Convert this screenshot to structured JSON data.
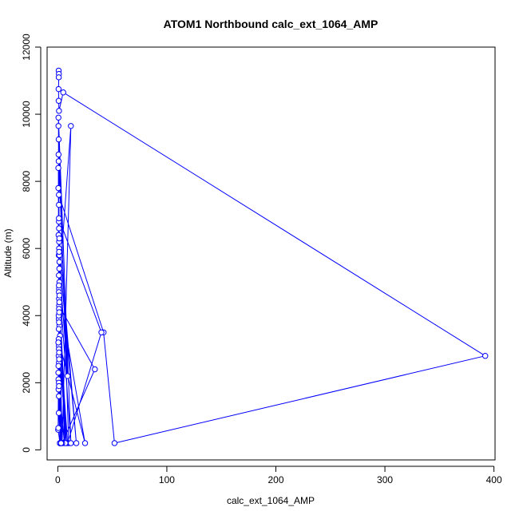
{
  "chart_data": {
    "type": "line",
    "title": "ATOM1 Northbound calc_ext_1064_AMP",
    "xlabel": "calc_ext_1064_AMP",
    "ylabel": "Altitude (m)",
    "xlim": [
      -9.8,
      401
    ],
    "ylim": [
      -300,
      12000
    ],
    "x_ticks": [
      0,
      100,
      200,
      300,
      400
    ],
    "y_ticks": [
      0,
      2000,
      4000,
      6000,
      8000,
      10000,
      12000
    ],
    "grid": false,
    "series": [
      {
        "color": "#0000ff",
        "marker": "open-circle",
        "x": [
          0.8,
          1.0,
          0.9,
          0.7,
          0.8,
          1.1,
          5,
          392,
          52,
          42,
          1.0,
          0.9,
          9,
          0.8,
          1.2,
          1.0,
          0.6,
          10,
          0.8,
          0.7,
          1.4,
          1.1,
          12,
          4,
          34,
          1.2,
          1.0,
          0.5,
          0.7,
          1.0,
          1.1,
          2,
          1.3,
          25,
          1.0,
          1.5,
          0.8,
          0.6,
          6,
          1.4,
          1.2,
          3,
          1.1,
          0.5,
          0.9,
          9,
          40,
          1.0,
          1.4,
          17,
          1.2,
          1.5,
          8,
          1.0,
          3,
          1.1,
          0.6,
          12,
          1.5,
          7,
          2,
          1.0,
          0.8,
          1.5,
          2,
          1.0,
          1.1,
          0.5,
          2,
          0.7,
          1.2,
          4,
          1.0,
          1.3,
          3,
          0.9,
          0.6,
          1.4,
          1.0,
          2,
          0.3,
          0.8,
          2,
          1.0,
          1.2,
          0.5,
          0.9,
          3,
          1.1,
          0.5
        ],
        "y": [
          11300,
          11200,
          11100,
          10750,
          10400,
          10100,
          10650,
          2800,
          200,
          3500,
          7600,
          5800,
          2200,
          8600,
          6000,
          7300,
          9650,
          200,
          9250,
          8800,
          5800,
          4800,
          9650,
          200,
          2400,
          4300,
          6800,
          7800,
          6400,
          5200,
          4500,
          200,
          3200,
          200,
          4700,
          3700,
          2800,
          2100,
          200,
          5400,
          6200,
          200,
          6600,
          8400,
          3900,
          200,
          3500,
          6900,
          6300,
          200,
          5900,
          4600,
          200,
          3100,
          200,
          4200,
          9900,
          200,
          5000,
          200,
          3400,
          2600,
          4000,
          5600,
          200,
          3000,
          3800,
          2300,
          200,
          1800,
          2900,
          200,
          4900,
          4100,
          200,
          3600,
          2500,
          4400,
          2000,
          200,
          600,
          3300,
          200,
          1600,
          2700,
          3200,
          1100,
          200,
          1900,
          650
        ]
      }
    ]
  }
}
